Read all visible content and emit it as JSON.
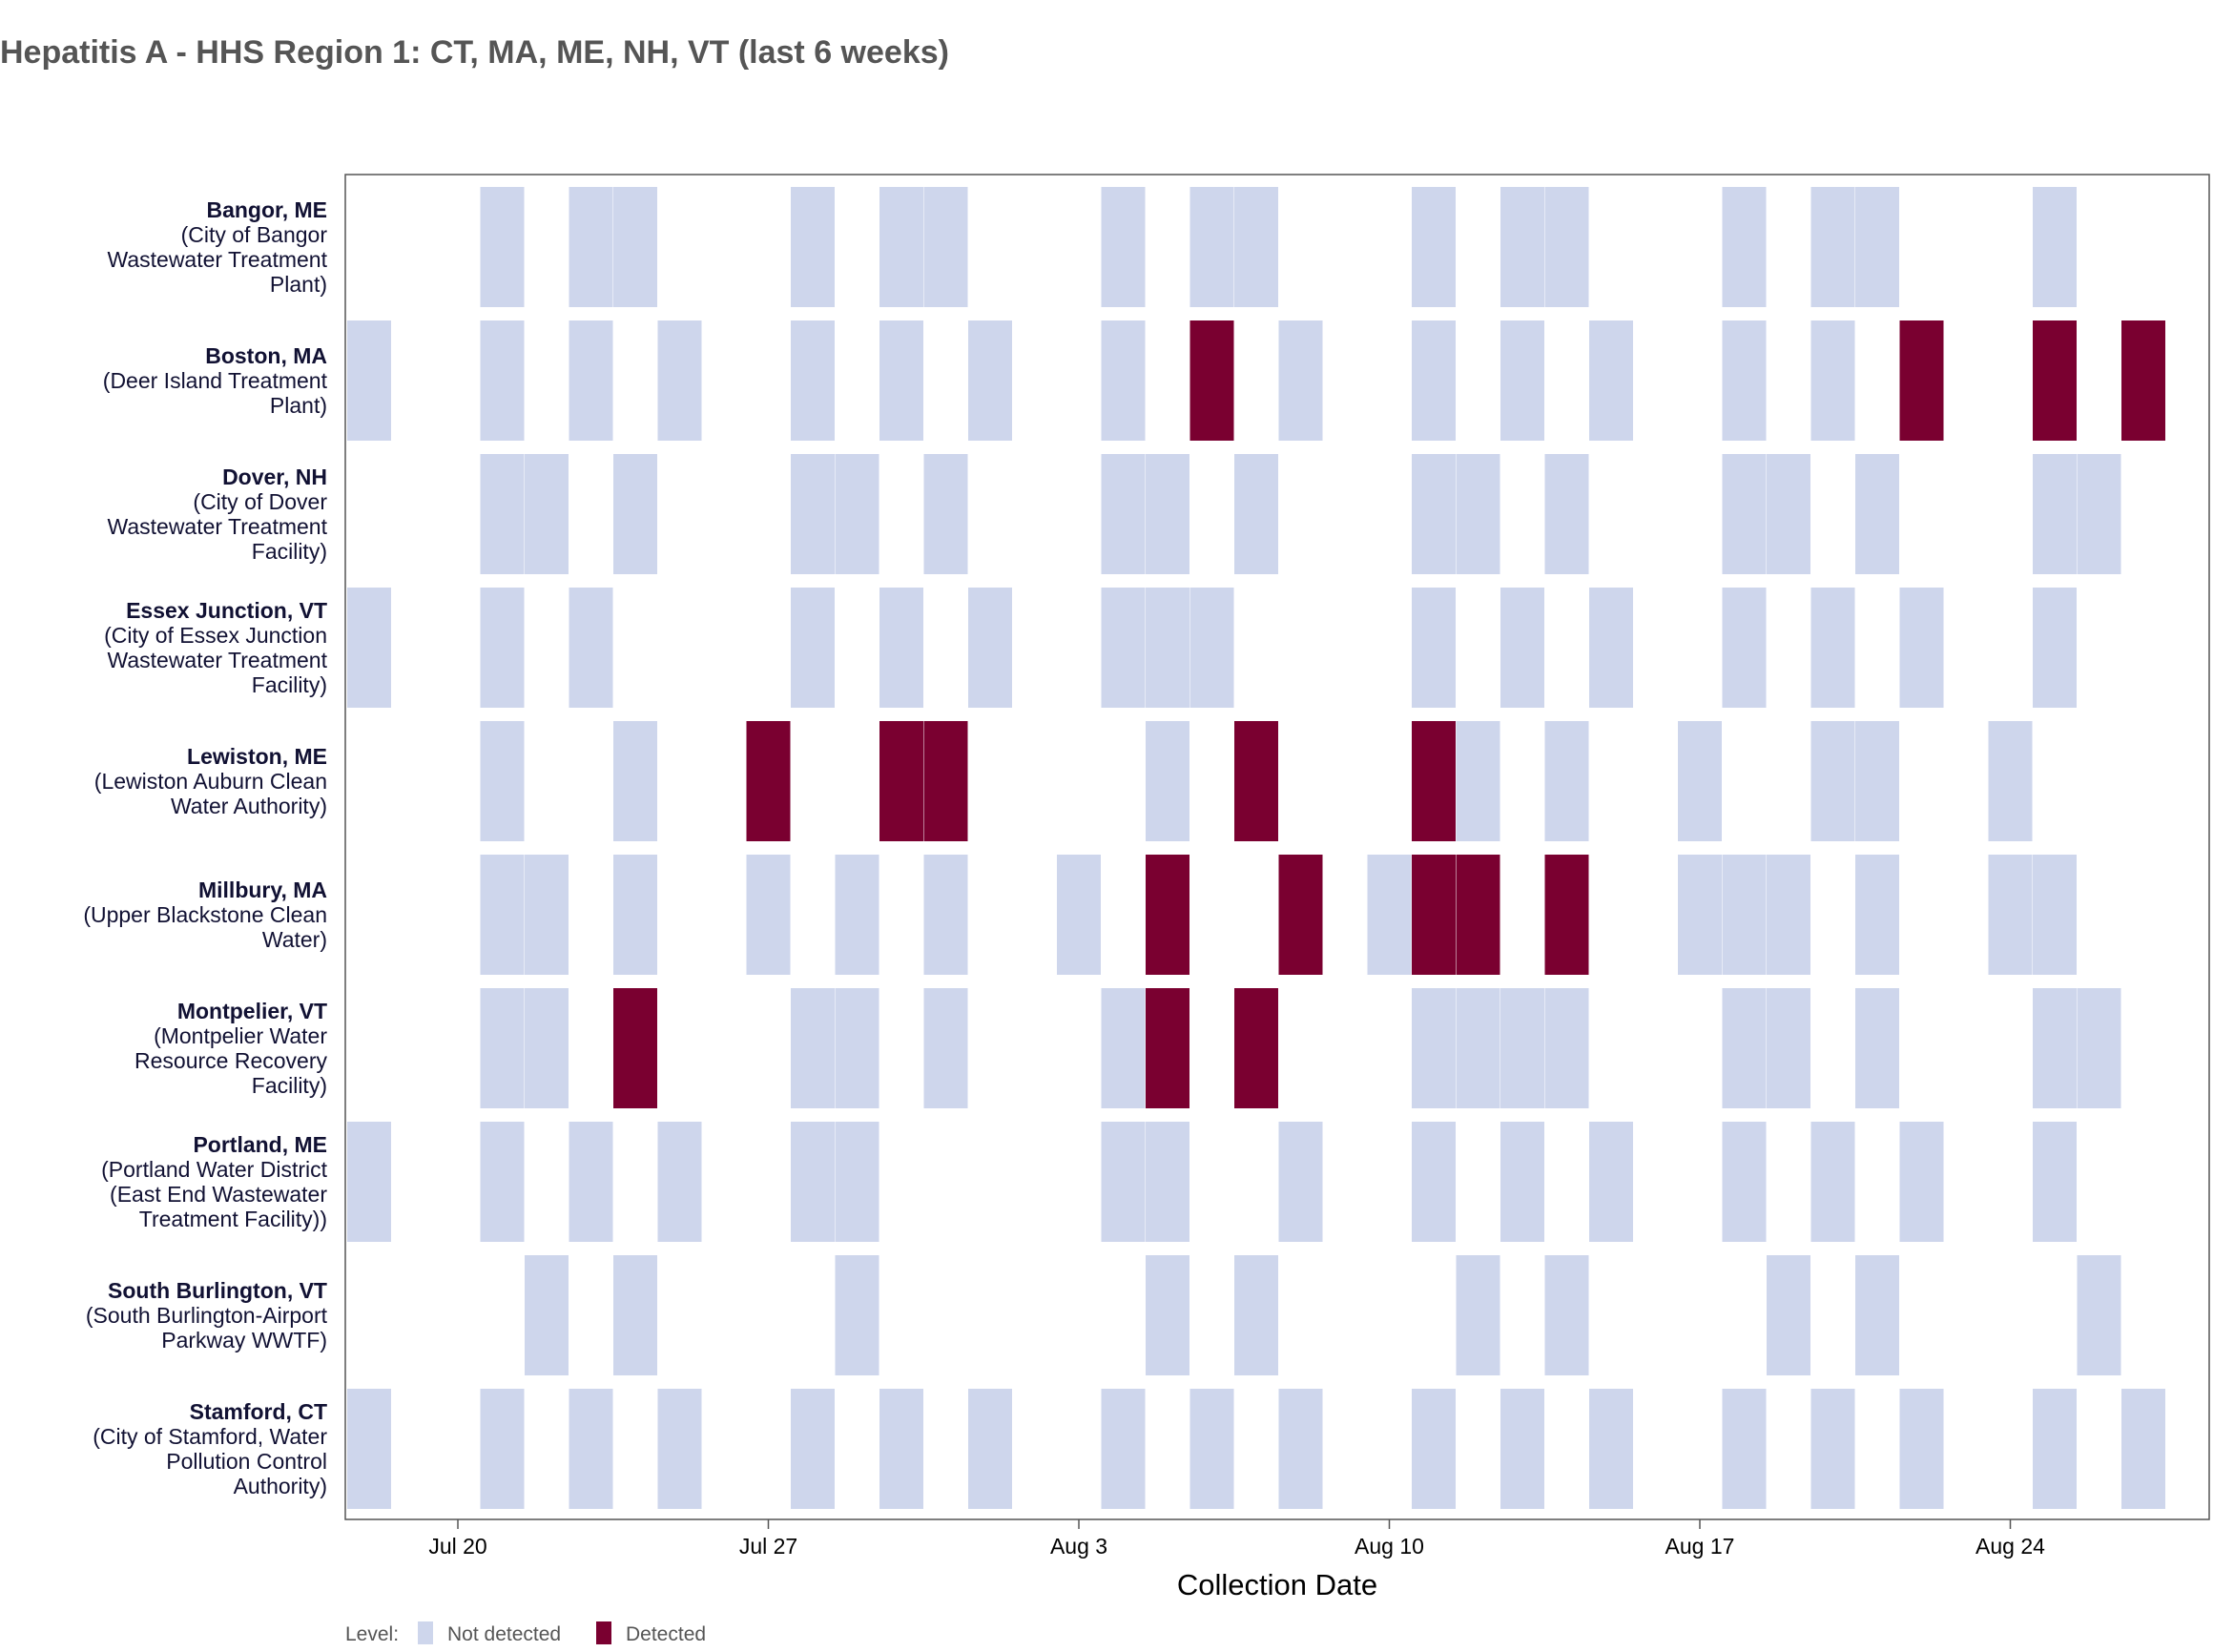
{
  "chart_data": {
    "type": "heatmap",
    "title": "Hepatitis A - HHS Region 1: CT, MA, ME, NH, VT (last 6 weeks)",
    "xlabel": "Collection Date",
    "x_range": [
      "2024-07-18",
      "2024-08-28"
    ],
    "x_ticks": [
      {
        "date": "2024-07-20",
        "label": "Jul 20"
      },
      {
        "date": "2024-07-27",
        "label": "Jul 27"
      },
      {
        "date": "2024-08-03",
        "label": "Aug 3"
      },
      {
        "date": "2024-08-10",
        "label": "Aug 10"
      },
      {
        "date": "2024-08-17",
        "label": "Aug 17"
      },
      {
        "date": "2024-08-24",
        "label": "Aug 24"
      }
    ],
    "legend": {
      "placement": "bottom-left",
      "title": "Level:",
      "entries": [
        {
          "label": "Not detected",
          "color": "#CED6EC"
        },
        {
          "label": "Detected",
          "color": "#7A0030"
        }
      ]
    },
    "sites": [
      {
        "name": "Bangor, ME",
        "lines": [
          "(City of Bangor",
          "Wastewater Treatment",
          "Plant)"
        ],
        "cells": [
          {
            "date": "2024-07-21",
            "level": "Not detected"
          },
          {
            "date": "2024-07-23",
            "level": "Not detected"
          },
          {
            "date": "2024-07-24",
            "level": "Not detected"
          },
          {
            "date": "2024-07-28",
            "level": "Not detected"
          },
          {
            "date": "2024-07-30",
            "level": "Not detected"
          },
          {
            "date": "2024-07-31",
            "level": "Not detected"
          },
          {
            "date": "2024-08-04",
            "level": "Not detected"
          },
          {
            "date": "2024-08-06",
            "level": "Not detected"
          },
          {
            "date": "2024-08-07",
            "level": "Not detected"
          },
          {
            "date": "2024-08-11",
            "level": "Not detected"
          },
          {
            "date": "2024-08-13",
            "level": "Not detected"
          },
          {
            "date": "2024-08-14",
            "level": "Not detected"
          },
          {
            "date": "2024-08-18",
            "level": "Not detected"
          },
          {
            "date": "2024-08-20",
            "level": "Not detected"
          },
          {
            "date": "2024-08-21",
            "level": "Not detected"
          },
          {
            "date": "2024-08-25",
            "level": "Not detected"
          }
        ]
      },
      {
        "name": "Boston, MA",
        "lines": [
          "(Deer Island Treatment",
          "Plant)"
        ],
        "cells": [
          {
            "date": "2024-07-18",
            "level": "Not detected"
          },
          {
            "date": "2024-07-21",
            "level": "Not detected"
          },
          {
            "date": "2024-07-23",
            "level": "Not detected"
          },
          {
            "date": "2024-07-25",
            "level": "Not detected"
          },
          {
            "date": "2024-07-28",
            "level": "Not detected"
          },
          {
            "date": "2024-07-30",
            "level": "Not detected"
          },
          {
            "date": "2024-08-01",
            "level": "Not detected"
          },
          {
            "date": "2024-08-04",
            "level": "Not detected"
          },
          {
            "date": "2024-08-06",
            "level": "Detected"
          },
          {
            "date": "2024-08-08",
            "level": "Not detected"
          },
          {
            "date": "2024-08-11",
            "level": "Not detected"
          },
          {
            "date": "2024-08-13",
            "level": "Not detected"
          },
          {
            "date": "2024-08-15",
            "level": "Not detected"
          },
          {
            "date": "2024-08-18",
            "level": "Not detected"
          },
          {
            "date": "2024-08-20",
            "level": "Not detected"
          },
          {
            "date": "2024-08-22",
            "level": "Detected"
          },
          {
            "date": "2024-08-25",
            "level": "Detected"
          },
          {
            "date": "2024-08-27",
            "level": "Detected"
          }
        ]
      },
      {
        "name": "Dover, NH",
        "lines": [
          "(City of Dover",
          "Wastewater Treatment",
          "Facility)"
        ],
        "cells": [
          {
            "date": "2024-07-21",
            "level": "Not detected"
          },
          {
            "date": "2024-07-22",
            "level": "Not detected"
          },
          {
            "date": "2024-07-24",
            "level": "Not detected"
          },
          {
            "date": "2024-07-28",
            "level": "Not detected"
          },
          {
            "date": "2024-07-29",
            "level": "Not detected"
          },
          {
            "date": "2024-07-31",
            "level": "Not detected"
          },
          {
            "date": "2024-08-04",
            "level": "Not detected"
          },
          {
            "date": "2024-08-05",
            "level": "Not detected"
          },
          {
            "date": "2024-08-07",
            "level": "Not detected"
          },
          {
            "date": "2024-08-11",
            "level": "Not detected"
          },
          {
            "date": "2024-08-12",
            "level": "Not detected"
          },
          {
            "date": "2024-08-14",
            "level": "Not detected"
          },
          {
            "date": "2024-08-18",
            "level": "Not detected"
          },
          {
            "date": "2024-08-19",
            "level": "Not detected"
          },
          {
            "date": "2024-08-21",
            "level": "Not detected"
          },
          {
            "date": "2024-08-25",
            "level": "Not detected"
          },
          {
            "date": "2024-08-26",
            "level": "Not detected"
          }
        ]
      },
      {
        "name": "Essex Junction, VT",
        "lines": [
          "(City of Essex Junction",
          "Wastewater Treatment",
          "Facility)"
        ],
        "cells": [
          {
            "date": "2024-07-18",
            "level": "Not detected"
          },
          {
            "date": "2024-07-21",
            "level": "Not detected"
          },
          {
            "date": "2024-07-23",
            "level": "Not detected"
          },
          {
            "date": "2024-07-28",
            "level": "Not detected"
          },
          {
            "date": "2024-07-30",
            "level": "Not detected"
          },
          {
            "date": "2024-08-01",
            "level": "Not detected"
          },
          {
            "date": "2024-08-04",
            "level": "Not detected"
          },
          {
            "date": "2024-08-05",
            "level": "Not detected"
          },
          {
            "date": "2024-08-06",
            "level": "Not detected"
          },
          {
            "date": "2024-08-11",
            "level": "Not detected"
          },
          {
            "date": "2024-08-13",
            "level": "Not detected"
          },
          {
            "date": "2024-08-15",
            "level": "Not detected"
          },
          {
            "date": "2024-08-18",
            "level": "Not detected"
          },
          {
            "date": "2024-08-20",
            "level": "Not detected"
          },
          {
            "date": "2024-08-22",
            "level": "Not detected"
          },
          {
            "date": "2024-08-25",
            "level": "Not detected"
          }
        ]
      },
      {
        "name": "Lewiston, ME",
        "lines": [
          "(Lewiston Auburn Clean",
          "Water Authority)"
        ],
        "cells": [
          {
            "date": "2024-07-21",
            "level": "Not detected"
          },
          {
            "date": "2024-07-24",
            "level": "Not detected"
          },
          {
            "date": "2024-07-27",
            "level": "Detected"
          },
          {
            "date": "2024-07-30",
            "level": "Detected"
          },
          {
            "date": "2024-07-31",
            "level": "Detected"
          },
          {
            "date": "2024-08-05",
            "level": "Not detected"
          },
          {
            "date": "2024-08-07",
            "level": "Detected"
          },
          {
            "date": "2024-08-11",
            "level": "Detected"
          },
          {
            "date": "2024-08-12",
            "level": "Not detected"
          },
          {
            "date": "2024-08-14",
            "level": "Not detected"
          },
          {
            "date": "2024-08-17",
            "level": "Not detected"
          },
          {
            "date": "2024-08-20",
            "level": "Not detected"
          },
          {
            "date": "2024-08-21",
            "level": "Not detected"
          },
          {
            "date": "2024-08-24",
            "level": "Not detected"
          }
        ]
      },
      {
        "name": "Millbury, MA",
        "lines": [
          "(Upper Blackstone Clean",
          "Water)"
        ],
        "cells": [
          {
            "date": "2024-07-21",
            "level": "Not detected"
          },
          {
            "date": "2024-07-22",
            "level": "Not detected"
          },
          {
            "date": "2024-07-24",
            "level": "Not detected"
          },
          {
            "date": "2024-07-27",
            "level": "Not detected"
          },
          {
            "date": "2024-07-29",
            "level": "Not detected"
          },
          {
            "date": "2024-07-31",
            "level": "Not detected"
          },
          {
            "date": "2024-08-03",
            "level": "Not detected"
          },
          {
            "date": "2024-08-05",
            "level": "Detected"
          },
          {
            "date": "2024-08-08",
            "level": "Detected"
          },
          {
            "date": "2024-08-10",
            "level": "Not detected"
          },
          {
            "date": "2024-08-11",
            "level": "Detected"
          },
          {
            "date": "2024-08-12",
            "level": "Detected"
          },
          {
            "date": "2024-08-14",
            "level": "Detected"
          },
          {
            "date": "2024-08-17",
            "level": "Not detected"
          },
          {
            "date": "2024-08-18",
            "level": "Not detected"
          },
          {
            "date": "2024-08-19",
            "level": "Not detected"
          },
          {
            "date": "2024-08-21",
            "level": "Not detected"
          },
          {
            "date": "2024-08-24",
            "level": "Not detected"
          },
          {
            "date": "2024-08-25",
            "level": "Not detected"
          }
        ]
      },
      {
        "name": "Montpelier, VT",
        "lines": [
          "(Montpelier Water",
          "Resource Recovery",
          "Facility)"
        ],
        "cells": [
          {
            "date": "2024-07-21",
            "level": "Not detected"
          },
          {
            "date": "2024-07-22",
            "level": "Not detected"
          },
          {
            "date": "2024-07-24",
            "level": "Detected"
          },
          {
            "date": "2024-07-28",
            "level": "Not detected"
          },
          {
            "date": "2024-07-29",
            "level": "Not detected"
          },
          {
            "date": "2024-07-31",
            "level": "Not detected"
          },
          {
            "date": "2024-08-04",
            "level": "Not detected"
          },
          {
            "date": "2024-08-05",
            "level": "Detected"
          },
          {
            "date": "2024-08-07",
            "level": "Detected"
          },
          {
            "date": "2024-08-11",
            "level": "Not detected"
          },
          {
            "date": "2024-08-12",
            "level": "Not detected"
          },
          {
            "date": "2024-08-13",
            "level": "Not detected"
          },
          {
            "date": "2024-08-14",
            "level": "Not detected"
          },
          {
            "date": "2024-08-18",
            "level": "Not detected"
          },
          {
            "date": "2024-08-19",
            "level": "Not detected"
          },
          {
            "date": "2024-08-21",
            "level": "Not detected"
          },
          {
            "date": "2024-08-25",
            "level": "Not detected"
          },
          {
            "date": "2024-08-26",
            "level": "Not detected"
          }
        ]
      },
      {
        "name": "Portland, ME",
        "lines": [
          "(Portland Water District",
          "(East End Wastewater",
          "Treatment Facility))"
        ],
        "cells": [
          {
            "date": "2024-07-18",
            "level": "Not detected"
          },
          {
            "date": "2024-07-21",
            "level": "Not detected"
          },
          {
            "date": "2024-07-23",
            "level": "Not detected"
          },
          {
            "date": "2024-07-25",
            "level": "Not detected"
          },
          {
            "date": "2024-07-28",
            "level": "Not detected"
          },
          {
            "date": "2024-07-29",
            "level": "Not detected"
          },
          {
            "date": "2024-08-04",
            "level": "Not detected"
          },
          {
            "date": "2024-08-05",
            "level": "Not detected"
          },
          {
            "date": "2024-08-08",
            "level": "Not detected"
          },
          {
            "date": "2024-08-11",
            "level": "Not detected"
          },
          {
            "date": "2024-08-13",
            "level": "Not detected"
          },
          {
            "date": "2024-08-15",
            "level": "Not detected"
          },
          {
            "date": "2024-08-18",
            "level": "Not detected"
          },
          {
            "date": "2024-08-20",
            "level": "Not detected"
          },
          {
            "date": "2024-08-22",
            "level": "Not detected"
          },
          {
            "date": "2024-08-25",
            "level": "Not detected"
          }
        ]
      },
      {
        "name": "South Burlington, VT",
        "lines": [
          "(South Burlington-Airport",
          "Parkway WWTF)"
        ],
        "cells": [
          {
            "date": "2024-07-22",
            "level": "Not detected"
          },
          {
            "date": "2024-07-24",
            "level": "Not detected"
          },
          {
            "date": "2024-07-29",
            "level": "Not detected"
          },
          {
            "date": "2024-08-05",
            "level": "Not detected"
          },
          {
            "date": "2024-08-07",
            "level": "Not detected"
          },
          {
            "date": "2024-08-12",
            "level": "Not detected"
          },
          {
            "date": "2024-08-14",
            "level": "Not detected"
          },
          {
            "date": "2024-08-19",
            "level": "Not detected"
          },
          {
            "date": "2024-08-21",
            "level": "Not detected"
          },
          {
            "date": "2024-08-26",
            "level": "Not detected"
          }
        ]
      },
      {
        "name": "Stamford, CT",
        "lines": [
          "(City of Stamford, Water",
          "Pollution Control",
          "Authority)"
        ],
        "cells": [
          {
            "date": "2024-07-18",
            "level": "Not detected"
          },
          {
            "date": "2024-07-21",
            "level": "Not detected"
          },
          {
            "date": "2024-07-23",
            "level": "Not detected"
          },
          {
            "date": "2024-07-25",
            "level": "Not detected"
          },
          {
            "date": "2024-07-28",
            "level": "Not detected"
          },
          {
            "date": "2024-07-30",
            "level": "Not detected"
          },
          {
            "date": "2024-08-01",
            "level": "Not detected"
          },
          {
            "date": "2024-08-04",
            "level": "Not detected"
          },
          {
            "date": "2024-08-06",
            "level": "Not detected"
          },
          {
            "date": "2024-08-08",
            "level": "Not detected"
          },
          {
            "date": "2024-08-11",
            "level": "Not detected"
          },
          {
            "date": "2024-08-13",
            "level": "Not detected"
          },
          {
            "date": "2024-08-15",
            "level": "Not detected"
          },
          {
            "date": "2024-08-18",
            "level": "Not detected"
          },
          {
            "date": "2024-08-20",
            "level": "Not detected"
          },
          {
            "date": "2024-08-22",
            "level": "Not detected"
          },
          {
            "date": "2024-08-25",
            "level": "Not detected"
          },
          {
            "date": "2024-08-27",
            "level": "Not detected"
          }
        ]
      }
    ]
  }
}
